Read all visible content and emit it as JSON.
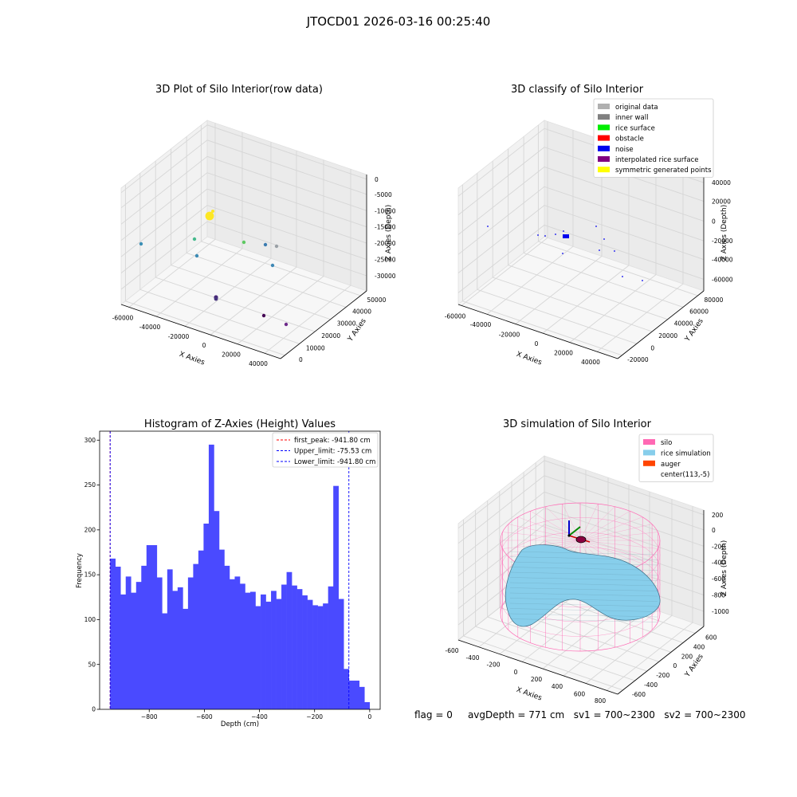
{
  "figure": {
    "suptitle": "JTOCD01 2026-03-16 00:25:40",
    "status": {
      "flag": "flag = 0",
      "avg_depth": "avgDepth = 771 cm",
      "sv1": "sv1 = 700~2300",
      "sv2": "sv2 = 700~2300"
    }
  },
  "chart_data": [
    {
      "type": "scatter",
      "title": "3D Plot of Silo Interior(row data)",
      "xlabel": "X Axies",
      "ylabel": "Y Axies",
      "zlabel": "Z Axies (Depth)",
      "x_ticks": [
        "-60000",
        "-40000",
        "-20000",
        "0",
        "20000",
        "40000"
      ],
      "y_ticks": [
        "0",
        "10000",
        "20000",
        "30000",
        "40000",
        "50000"
      ],
      "z_ticks": [
        "0",
        "-5000",
        "-10000",
        "-15000",
        "-20000",
        "-25000",
        "-30000"
      ],
      "grid": true,
      "points": [
        {
          "color": "#3b8fb5"
        },
        {
          "color": "#45b98c"
        },
        {
          "color": "#3c8bb5"
        },
        {
          "color": "#fde725"
        },
        {
          "color": "#5ec962"
        },
        {
          "color": "#3a7bb0"
        },
        {
          "color": "#9aa0a6"
        },
        {
          "color": "#3f88b5"
        },
        {
          "color": "#482878"
        },
        {
          "color": "#46337e"
        },
        {
          "color": "#440154"
        },
        {
          "color": "#6d2a8a"
        }
      ]
    },
    {
      "type": "scatter",
      "title": "3D classify of Silo Interior",
      "xlabel": "X Axies",
      "ylabel": "Y Axies",
      "zlabel": "Z Axies (Depth)",
      "x_ticks": [
        "-60000",
        "-40000",
        "-20000",
        "0",
        "20000",
        "40000"
      ],
      "y_ticks": [
        "-20000",
        "0",
        "20000",
        "40000",
        "60000",
        "80000"
      ],
      "z_ticks": [
        "40000",
        "20000",
        "0",
        "-20000",
        "-40000",
        "-60000"
      ],
      "grid": true,
      "legend_position": "top-right",
      "legend": [
        {
          "label": "original data",
          "color": "#b0b0b0"
        },
        {
          "label": "inner wall",
          "color": "#808080"
        },
        {
          "label": "rice surface",
          "color": "#00ee00"
        },
        {
          "label": "obstacle",
          "color": "#ff0000"
        },
        {
          "label": "noise",
          "color": "#0000ee"
        },
        {
          "label": "interpolated rice surface",
          "color": "#800080"
        },
        {
          "label": "symmetric generated points",
          "color": "#ffff00"
        }
      ]
    },
    {
      "type": "bar",
      "title": "Histogram of Z-Axies (Height) Values",
      "xlabel": "Depth (cm)",
      "ylabel": "Frequency",
      "xlim": [
        -980,
        38
      ],
      "ylim": [
        0,
        310
      ],
      "x_ticks": [
        -800,
        -600,
        -400,
        -200,
        0
      ],
      "y_ticks": [
        0,
        50,
        100,
        150,
        200,
        250,
        300
      ],
      "bar_color": "#4a4aff",
      "bin_start": -941.8,
      "bin_width": 18.83,
      "values": [
        168,
        159,
        128,
        148,
        130,
        142,
        160,
        183,
        183,
        147,
        107,
        156,
        132,
        136,
        112,
        147,
        162,
        177,
        207,
        295,
        221,
        178,
        160,
        145,
        148,
        140,
        130,
        131,
        115,
        128,
        120,
        132,
        123,
        139,
        153,
        138,
        134,
        127,
        122,
        116,
        115,
        118,
        137,
        249,
        123,
        45,
        32,
        32,
        25,
        8
      ],
      "legend_position": "top-right",
      "lines": [
        {
          "label": "first_peak: -941.80 cm",
          "x": -941.8,
          "color": "#ff0000"
        },
        {
          "label": "Upper_limit: -75.53 cm",
          "x": -75.53,
          "color": "#0000ff"
        },
        {
          "label": "Lower_limit: -941.80 cm",
          "x": -941.8,
          "color": "#0000ff"
        }
      ]
    },
    {
      "type": "surface",
      "title": "3D simulation of Silo Interior",
      "xlabel": "X Axies",
      "ylabel": "Y Axies",
      "zlabel": "Z Axies (Depth)",
      "x_ticks": [
        "-600",
        "-400",
        "-200",
        "0",
        "200",
        "400",
        "600",
        "800"
      ],
      "y_ticks": [
        "-600",
        "-400",
        "-200",
        "0",
        "200",
        "400",
        "600"
      ],
      "z_ticks": [
        "200",
        "0",
        "-200",
        "-400",
        "-600",
        "-800",
        "-1000"
      ],
      "grid": true,
      "legend_position": "top-right",
      "legend": [
        {
          "label": "silo",
          "color": "#ff69b4"
        },
        {
          "label": "rice simulation",
          "color": "#87ceeb"
        },
        {
          "label": "auger",
          "color": "#ff4500"
        },
        {
          "label": "center(113,-5)",
          "color": "#ffffff"
        }
      ]
    }
  ]
}
